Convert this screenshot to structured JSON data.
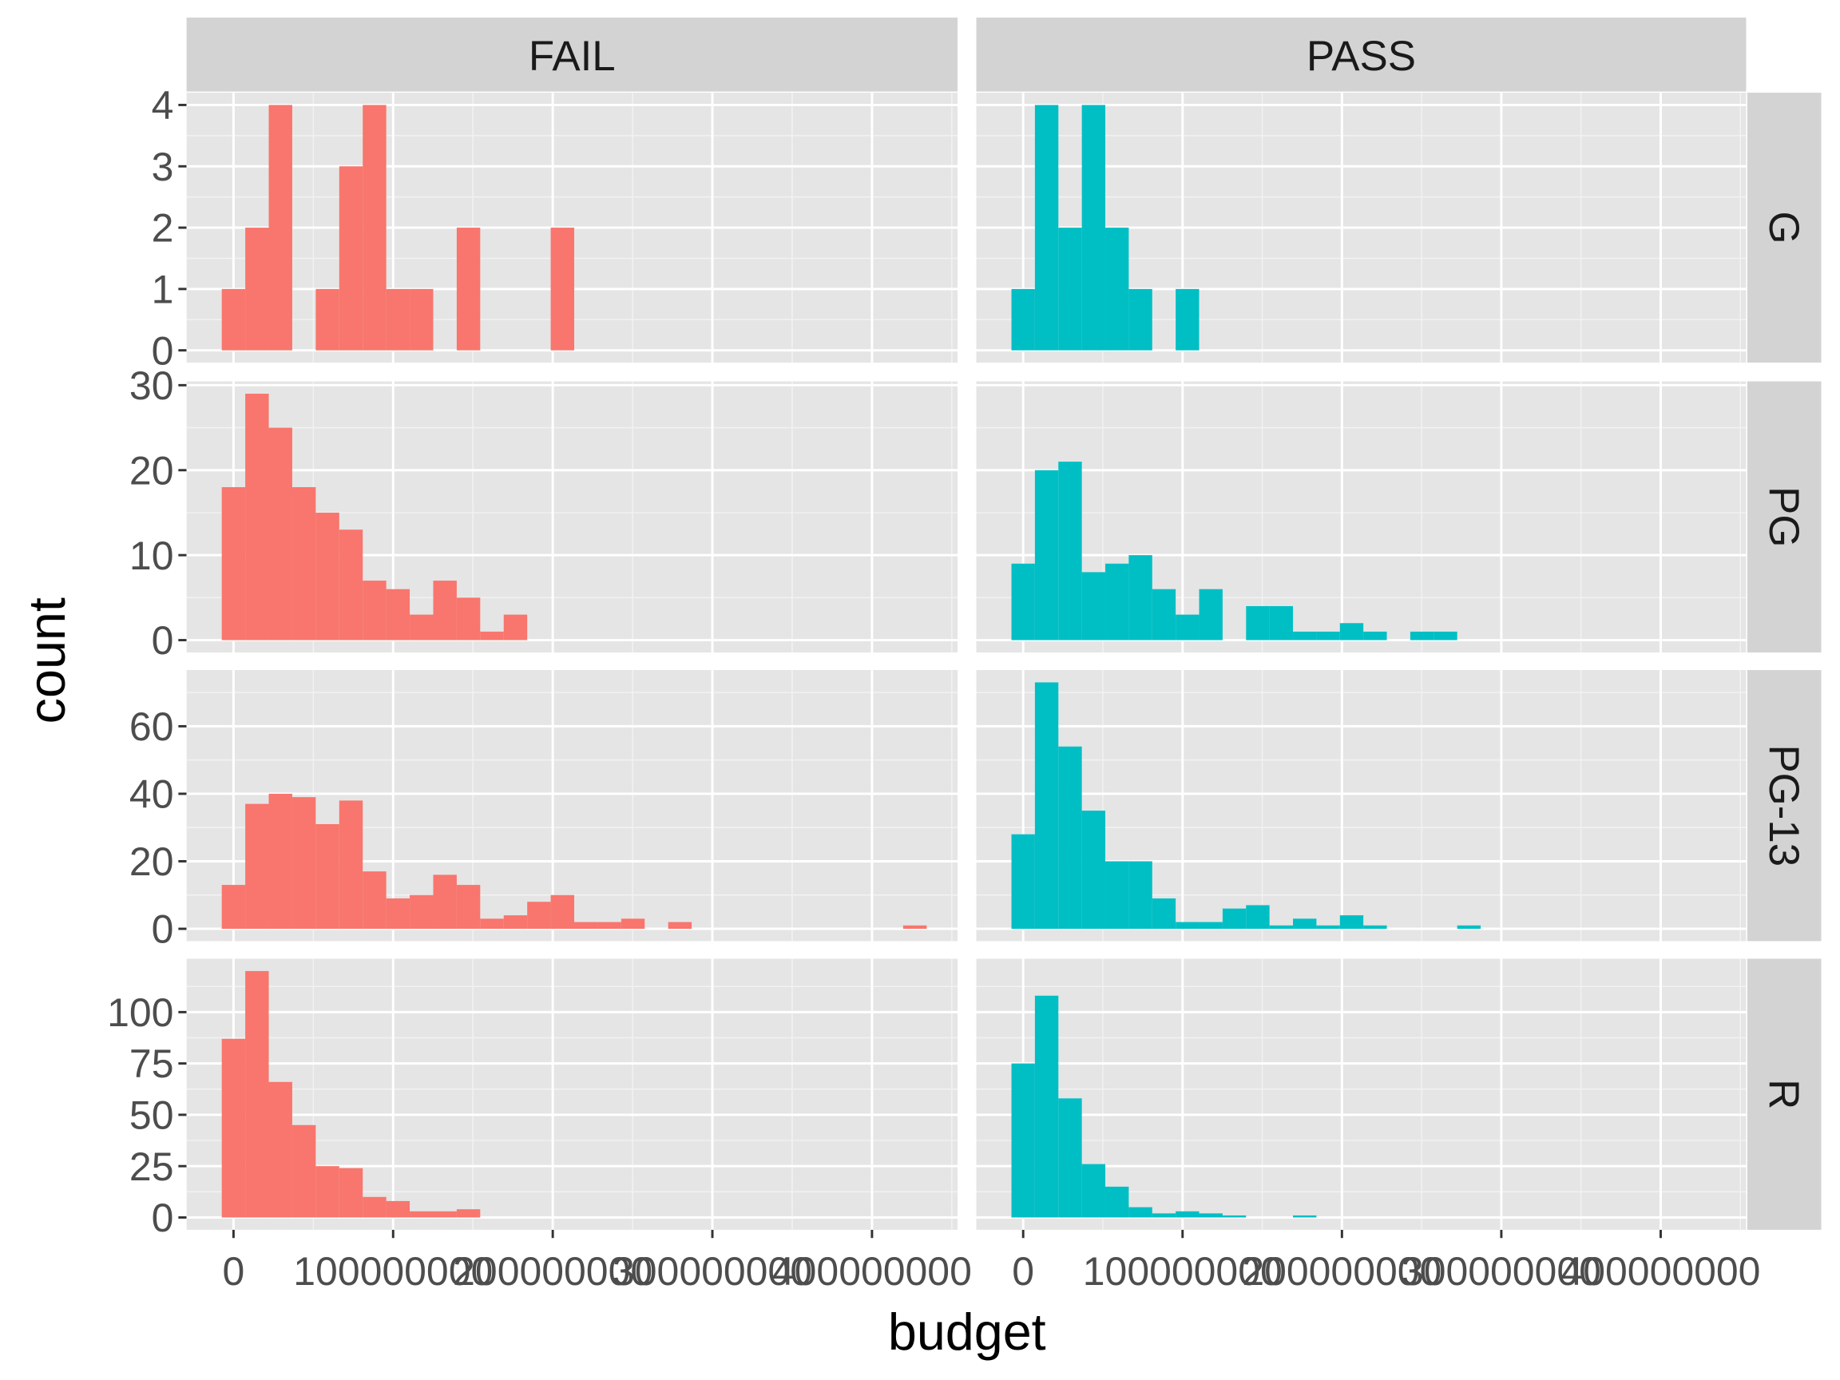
{
  "chart_data": {
    "type": "bar",
    "subtype": "histogram-facet-grid",
    "xlabel": "budget",
    "ylabel": "count",
    "column_facets": [
      "FAIL",
      "PASS"
    ],
    "row_facets": [
      "G",
      "PG",
      "PG-13",
      "R"
    ],
    "x_ticks": [
      0,
      100000000,
      200000000,
      300000000,
      400000000
    ],
    "x_tick_labels": [
      "0",
      "100000000",
      "200000000",
      "300000000",
      "400000000"
    ],
    "xlim": [
      -29400000,
      453600000
    ],
    "bin_width": 14720000,
    "colors": {
      "FAIL": "#F8766D",
      "PASS": "#00BFC4"
    },
    "rows": [
      {
        "name": "G",
        "ylim": [
          -0.2,
          4.2
        ],
        "y_ticks": [
          0,
          1,
          2,
          3,
          4
        ],
        "y_tick_labels": [
          "0",
          "1",
          "2",
          "3",
          "4"
        ],
        "FAIL": [
          1,
          2,
          4,
          0,
          1,
          3,
          4,
          1,
          1,
          0,
          2,
          0,
          0,
          0,
          2
        ],
        "PASS": [
          1,
          4,
          2,
          4,
          2,
          1,
          0,
          1
        ]
      },
      {
        "name": "PG",
        "ylim": [
          -1.45,
          30.45
        ],
        "y_ticks": [
          0,
          10,
          20,
          30
        ],
        "y_tick_labels": [
          "0",
          "10",
          "20",
          "30"
        ],
        "FAIL": [
          18,
          29,
          25,
          18,
          15,
          13,
          7,
          6,
          3,
          7,
          5,
          1,
          3
        ],
        "PASS": [
          9,
          20,
          21,
          8,
          9,
          10,
          6,
          3,
          6,
          0,
          4,
          4,
          1,
          1,
          2,
          1,
          0,
          1,
          1
        ]
      },
      {
        "name": "PG-13",
        "ylim": [
          -3.65,
          76.65
        ],
        "y_ticks": [
          0,
          20,
          40,
          60
        ],
        "y_tick_labels": [
          "0",
          "20",
          "40",
          "60"
        ],
        "FAIL": [
          13,
          37,
          40,
          39,
          31,
          38,
          17,
          9,
          10,
          16,
          13,
          3,
          4,
          8,
          10,
          2,
          2,
          3,
          0,
          2,
          0,
          0,
          0,
          0,
          0,
          0,
          0,
          0,
          0,
          1
        ],
        "PASS": [
          28,
          73,
          54,
          35,
          20,
          20,
          9,
          2,
          2,
          6,
          7,
          1,
          3,
          1,
          4,
          1,
          0,
          0,
          0,
          1
        ]
      },
      {
        "name": "R",
        "ylim": [
          -6,
          126
        ],
        "y_ticks": [
          0,
          25,
          50,
          75,
          100
        ],
        "y_tick_labels": [
          "0",
          "25",
          "50",
          "75",
          "100"
        ],
        "FAIL": [
          87,
          120,
          66,
          45,
          25,
          24,
          10,
          8,
          3,
          3,
          4
        ],
        "PASS": [
          75,
          108,
          58,
          26,
          15,
          5,
          2,
          3,
          2,
          1,
          0,
          0,
          1
        ]
      }
    ]
  }
}
